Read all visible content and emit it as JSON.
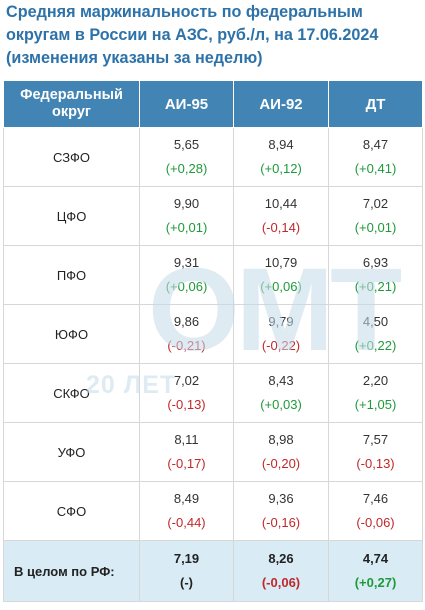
{
  "title": "Средняя маржинальность по федеральным округам в России на АЗС, руб./л, на 17.06.2024 (изменения указаны за неделю)",
  "table": {
    "headers": [
      "Федеральный округ",
      "АИ-95",
      "АИ-92",
      "ДТ"
    ],
    "rows": [
      {
        "region": "СЗФО",
        "ai95": "5,65",
        "ai95_chg": "(+0,28)",
        "ai92": "8,94",
        "ai92_chg": "(+0,12)",
        "dt": "8,47",
        "dt_chg": "(+0,41)"
      },
      {
        "region": "ЦФО",
        "ai95": "9,90",
        "ai95_chg": "(+0,01)",
        "ai92": "10,44",
        "ai92_chg": "(-0,14)",
        "dt": "7,02",
        "dt_chg": "(+0,01)"
      },
      {
        "region": "ПФО",
        "ai95": "9,31",
        "ai95_chg": "(+0,06)",
        "ai92": "10,79",
        "ai92_chg": "(+0,06)",
        "dt": "6,93",
        "dt_chg": "(+0,21)"
      },
      {
        "region": "ЮФО",
        "ai95": "9,86",
        "ai95_chg": "(-0,21)",
        "ai92": "9,79",
        "ai92_chg": "(-0,22)",
        "dt": "4,50",
        "dt_chg": "(+0,22)"
      },
      {
        "region": "СКФО",
        "ai95": "7,02",
        "ai95_chg": "(-0,13)",
        "ai92": "8,43",
        "ai92_chg": "(+0,03)",
        "dt": "2,20",
        "dt_chg": "(+1,05)"
      },
      {
        "region": "УФО",
        "ai95": "8,11",
        "ai95_chg": "(-0,17)",
        "ai92": "8,98",
        "ai92_chg": "(-0,20)",
        "dt": "7,57",
        "dt_chg": "(-0,13)"
      },
      {
        "region": "СФО",
        "ai95": "8,49",
        "ai95_chg": "(-0,44)",
        "ai92": "9,36",
        "ai92_chg": "(-0,16)",
        "dt": "7,46",
        "dt_chg": "(-0,06)"
      }
    ],
    "total": {
      "label": "В целом по РФ:",
      "ai95": "7,19",
      "ai95_chg": "(-)",
      "ai92": "8,26",
      "ai92_chg": "(-0,06)",
      "dt": "4,74",
      "dt_chg": "(+0,27)"
    }
  },
  "watermark": {
    "logo": "ОМТ",
    "caption": "20 ЛЕТ"
  },
  "colors": {
    "title": "#2d72a8",
    "header_bg": "#4285b4",
    "total_bg": "#d9ecf5",
    "positive": "#1f9a3a",
    "negative": "#c0282a",
    "watermark": "#c6dbe9"
  }
}
